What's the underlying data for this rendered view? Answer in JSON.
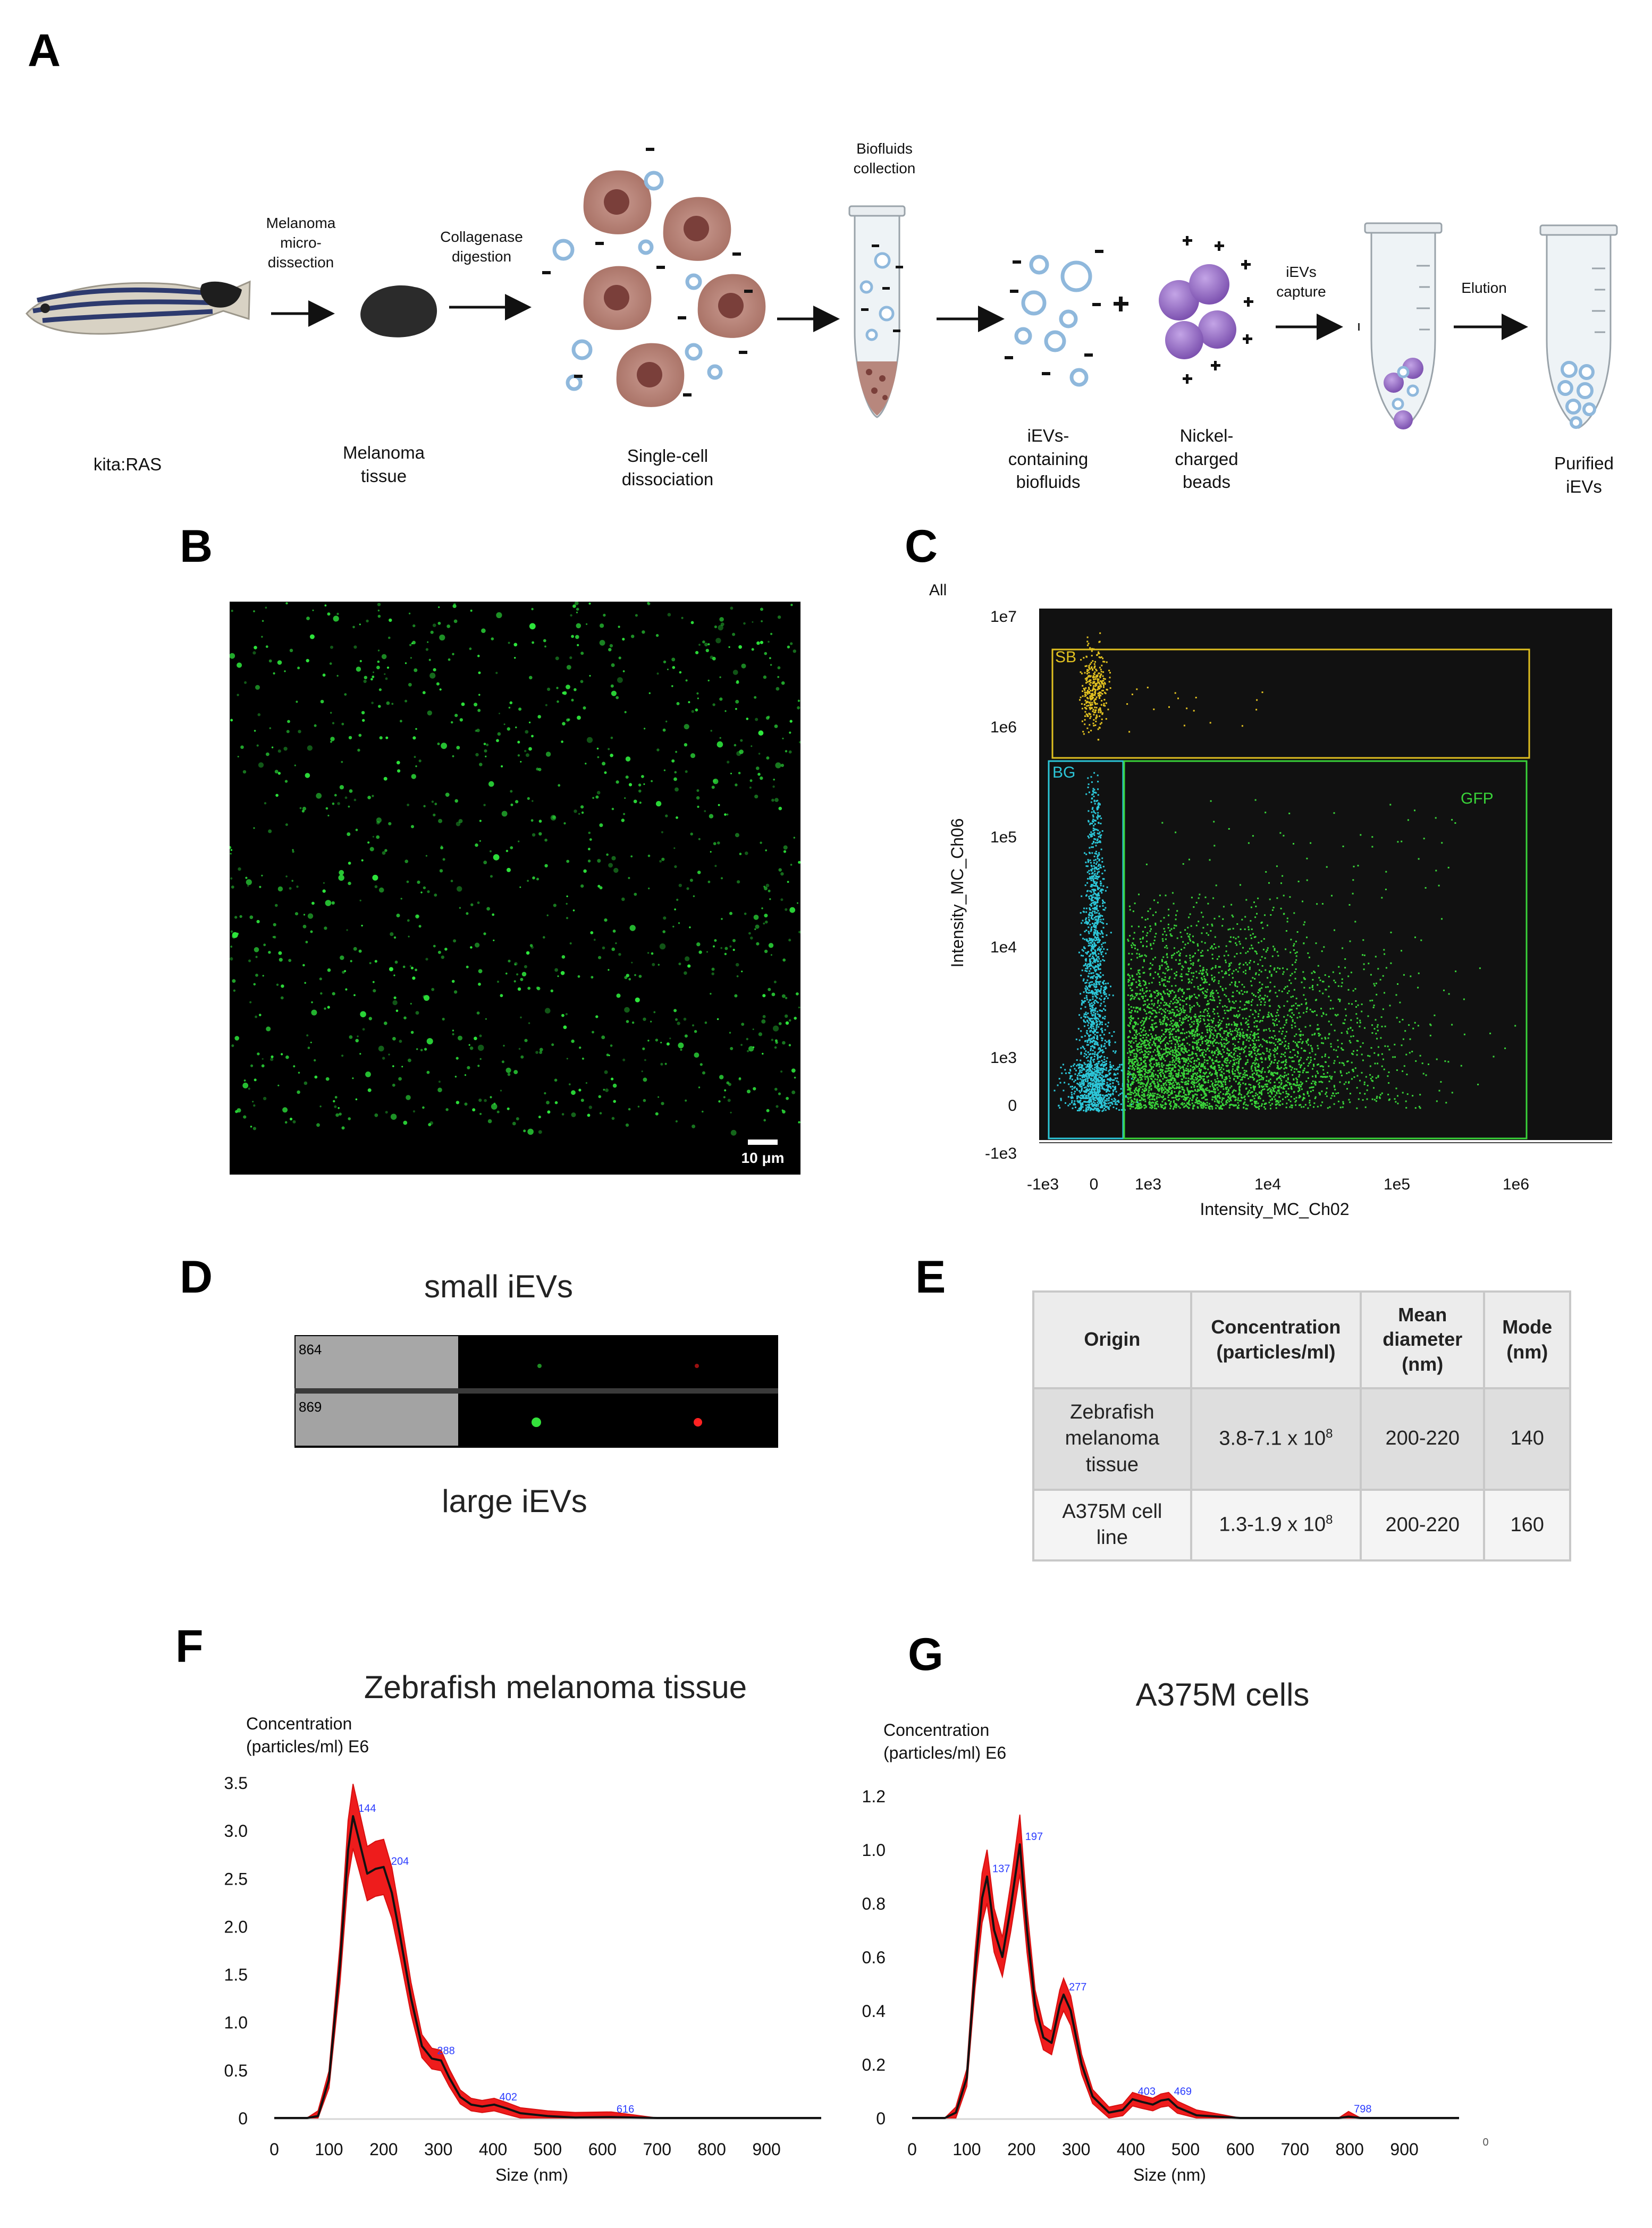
{
  "panel_labels": [
    "A",
    "B",
    "C",
    "D",
    "E",
    "F",
    "G"
  ],
  "panel_a": {
    "step_top_labels": [
      {
        "text": "Melanoma\nmicro-\ndissection"
      },
      {
        "text": "Collagenase\ndigestion"
      },
      {
        "text": "Biofluids\ncollection"
      },
      {
        "text": "iEVs\ncapture"
      },
      {
        "text": "Elution"
      }
    ],
    "bottom_labels": [
      "kita:RAS",
      "Melanoma\ntissue",
      "Single-cell\ndissociation",
      "iEVs-\ncontaining\nbiofluids",
      "Nickel-\ncharged\nbeads",
      "Purified\niEVs"
    ],
    "colors": {
      "cell": "#b7877d",
      "nucleus": "#7a3f3a",
      "vesicle": "#9cc2e0",
      "bead": "#9b72c7",
      "tissue": "#2b2b2b"
    }
  },
  "panel_b": {
    "scale_bar_label": "10 μm",
    "background": "#000000",
    "spot_color": "#2ee83c"
  },
  "panel_c": {
    "gate_header": "All",
    "x_label": "Intensity_MC_Ch02",
    "y_label": "Intensity_MC_Ch06",
    "x_ticks": [
      "-1e3",
      "0",
      "1e3",
      "1e4",
      "1e5",
      "1e6"
    ],
    "y_ticks": [
      "1e7",
      "1e6",
      "1e5",
      "1e4",
      "1e3",
      "0",
      "-1e3"
    ],
    "gates": [
      {
        "name": "SB",
        "color": "#e0c020"
      },
      {
        "name": "BG",
        "color": "#2cc6d8"
      },
      {
        "name": "GFP",
        "color": "#39d339"
      }
    ],
    "scale": "biexponential"
  },
  "panel_d": {
    "top_title": "small iEVs",
    "bottom_title": "large iEVs",
    "rows": [
      {
        "id": "864"
      },
      {
        "id": "869"
      }
    ]
  },
  "panel_e": {
    "headers": [
      "Origin",
      "Concentration\n(particles/ml)",
      "Mean\ndiameter\n(nm)",
      "Mode\n(nm)"
    ],
    "rows": [
      {
        "origin": "Zebrafish\nmelanoma\ntissue",
        "concentration": "3.8-7.1 x 10",
        "exp": "8",
        "mean": "200-220",
        "mode": "140"
      },
      {
        "origin": "A375M cell\nline",
        "concentration": "1.3-1.9 x 10",
        "exp": "8",
        "mean": "200-220",
        "mode": "160"
      }
    ]
  },
  "chart_data": [
    {
      "panel": "F",
      "type": "line",
      "title": "Zebrafish melanoma tissue",
      "ylabel": "Concentration\n(particles/ml)  E6",
      "xlabel": "Size (nm)",
      "xlim": [
        0,
        1000
      ],
      "ylim": [
        0,
        3.5
      ],
      "x_ticks": [
        "0",
        "100",
        "200",
        "300",
        "400",
        "500",
        "600",
        "700",
        "800",
        "900"
      ],
      "y_ticks": [
        "0",
        "0.5",
        "1.0",
        "1.5",
        "2.0",
        "2.5",
        "3.0",
        "3.5"
      ],
      "x": [
        0,
        60,
        80,
        100,
        120,
        135,
        144,
        155,
        170,
        185,
        200,
        215,
        230,
        250,
        270,
        288,
        305,
        320,
        340,
        360,
        380,
        402,
        425,
        450,
        500,
        550,
        616,
        700,
        800,
        900,
        1000
      ],
      "series": [
        {
          "values": [
            0,
            0,
            0.02,
            0.4,
            1.6,
            2.8,
            3.15,
            2.9,
            2.55,
            2.6,
            2.62,
            2.35,
            1.9,
            1.25,
            0.75,
            0.62,
            0.6,
            0.42,
            0.22,
            0.14,
            0.12,
            0.14,
            0.1,
            0.05,
            0.02,
            0.005,
            0.01,
            0.0,
            0.0,
            0.0,
            0.0
          ]
        }
      ],
      "peak_labels": [
        {
          "x": 144,
          "y": 3.15,
          "text": "144"
        },
        {
          "x": 204,
          "y": 2.6,
          "text": "204"
        },
        {
          "x": 288,
          "y": 0.62,
          "text": "288"
        },
        {
          "x": 402,
          "y": 0.14,
          "text": "402"
        },
        {
          "x": 616,
          "y": 0.01,
          "text": "616"
        }
      ]
    },
    {
      "panel": "G",
      "type": "line",
      "title": "A375M cells",
      "ylabel": "Concentration\n(particles/ml)  E6",
      "xlabel": "Size (nm)",
      "xlim": [
        0,
        1000
      ],
      "ylim": [
        0,
        1.25
      ],
      "x_ticks": [
        "0",
        "100",
        "200",
        "300",
        "400",
        "500",
        "600",
        "700",
        "800",
        "900"
      ],
      "y_ticks": [
        "0",
        "0.2",
        "0.4",
        "0.6",
        "0.8",
        "1.0",
        "1.2"
      ],
      "extra_tick": "0",
      "x": [
        0,
        60,
        80,
        100,
        115,
        128,
        137,
        150,
        165,
        180,
        197,
        210,
        225,
        240,
        255,
        270,
        277,
        290,
        310,
        330,
        360,
        385,
        403,
        420,
        440,
        455,
        469,
        485,
        520,
        600,
        700,
        780,
        798,
        820,
        900,
        1000
      ],
      "series": [
        {
          "values": [
            0,
            0,
            0.02,
            0.15,
            0.55,
            0.82,
            0.9,
            0.7,
            0.6,
            0.78,
            1.02,
            0.7,
            0.42,
            0.3,
            0.28,
            0.42,
            0.46,
            0.4,
            0.2,
            0.08,
            0.02,
            0.03,
            0.07,
            0.06,
            0.05,
            0.065,
            0.07,
            0.04,
            0.01,
            0.0,
            0.0,
            0.0,
            0.005,
            0.0,
            0.0,
            0.0
          ]
        }
      ],
      "peak_labels": [
        {
          "x": 137,
          "y": 0.9,
          "text": "137"
        },
        {
          "x": 197,
          "y": 1.02,
          "text": "197"
        },
        {
          "x": 277,
          "y": 0.46,
          "text": "277"
        },
        {
          "x": 403,
          "y": 0.07,
          "text": "403"
        },
        {
          "x": 469,
          "y": 0.07,
          "text": "469"
        },
        {
          "x": 798,
          "y": 0.005,
          "text": "798"
        }
      ]
    }
  ]
}
